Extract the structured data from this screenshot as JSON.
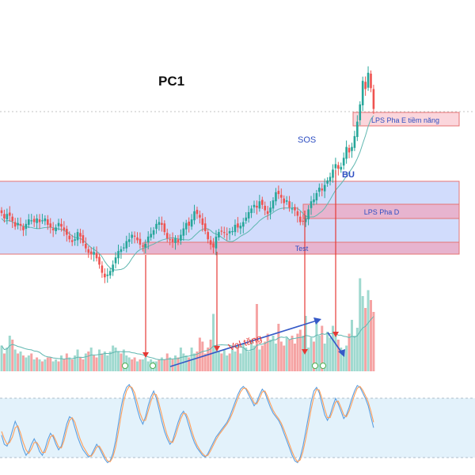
{
  "chart_data": [
    {
      "type": "candlestick",
      "title": "PC1",
      "colors": {
        "up": "#26a69a",
        "down": "#ef5350",
        "zone_fill": "#c9d6fb",
        "zone_border": "#e57373",
        "pink_zone": "#e7b4cf",
        "ma": "#5fb7b0",
        "arrow_red": "#e53935",
        "arrow_blue": "#3559c7",
        "label_blue": "#2f4fc2"
      },
      "zones": [
        {
          "name": "trading-range",
          "from_index": 0,
          "to_index": 135,
          "range": "upper"
        },
        {
          "name": "lps-pha-d-zone",
          "label": "LPS Pha D",
          "from_index": 110,
          "to_index": 135
        },
        {
          "name": "test-zone",
          "label": "Test",
          "from_index": 52,
          "to_index": 135
        },
        {
          "name": "lps-pha-e-zone",
          "label": "LPS Pha E tiềm năng",
          "from_index": 128,
          "to_index": 135
        }
      ],
      "annotations": [
        {
          "name": "sos-label",
          "text": "SOS"
        },
        {
          "name": "bu-label",
          "text": "BU"
        }
      ],
      "closes": [
        49.0,
        48.4,
        48.9,
        48.7,
        48.1,
        47.5,
        47.9,
        47.6,
        47.1,
        47.8,
        48.3,
        48.2,
        48.0,
        48.4,
        48.0,
        48.2,
        48.4,
        47.7,
        47.4,
        47.1,
        47.4,
        47.9,
        47.5,
        47.1,
        46.6,
        46.1,
        45.8,
        46.1,
        46.9,
        46.4,
        45.7,
        45.1,
        44.6,
        44.5,
        44.7,
        44.0,
        43.3,
        42.4,
        41.9,
        42.2,
        42.6,
        43.3,
        44.1,
        44.8,
        45.0,
        45.2,
        45.9,
        46.1,
        46.6,
        46.4,
        46.0,
        45.5,
        45.3,
        45.6,
        46.4,
        46.7,
        47.1,
        47.8,
        48.0,
        47.7,
        46.9,
        46.2,
        46.0,
        45.8,
        46.2,
        45.8,
        46.6,
        47.3,
        47.9,
        47.6,
        48.3,
        49.2,
        48.9,
        48.5,
        47.7,
        47.0,
        46.1,
        45.5,
        45.2,
        46.4,
        46.9,
        47.0,
        46.8,
        46.6,
        47.0,
        47.0,
        47.7,
        47.4,
        47.6,
        48.0,
        48.5,
        49.1,
        49.5,
        49.9,
        49.6,
        50.3,
        49.9,
        49.3,
        48.9,
        49.6,
        50.4,
        51.3,
        51.1,
        50.7,
        50.1,
        50.4,
        49.6,
        49.5,
        49.3,
        48.7,
        48.0,
        48.1,
        48.4,
        49.4,
        50.3,
        50.5,
        51.2,
        51.8,
        51.5,
        52.1,
        52.6,
        53.0,
        53.8,
        54.4,
        53.9,
        54.1,
        55.1,
        56.3,
        55.7,
        56.3,
        57.5,
        59.1,
        61.0,
        63.6,
        62.7,
        64.5,
        62.8,
        60.5
      ]
    },
    {
      "type": "bar",
      "annotations": [
        {
          "name": "vol-tang-label",
          "text": "Vol tăng"
        }
      ],
      "values": [
        1.3,
        0.9,
        1.2,
        1.8,
        1.6,
        1.1,
        0.9,
        1.0,
        0.8,
        0.7,
        0.8,
        0.9,
        0.6,
        0.7,
        0.6,
        0.5,
        0.6,
        0.7,
        0.7,
        0.5,
        0.6,
        0.5,
        0.8,
        0.6,
        0.9,
        0.7,
        0.6,
        0.8,
        1.1,
        0.7,
        0.6,
        0.9,
        1.0,
        1.2,
        0.8,
        0.7,
        1.1,
        0.9,
        1.0,
        0.8,
        1.0,
        1.3,
        1.2,
        1.0,
        0.9,
        1.1,
        0.8,
        0.7,
        0.6,
        0.7,
        0.5,
        0.6,
        0.6,
        0.7,
        0.5,
        0.6,
        0.5,
        0.5,
        0.6,
        0.7,
        0.6,
        0.9,
        0.7,
        0.6,
        0.8,
        0.7,
        1.2,
        0.9,
        0.8,
        0.7,
        1.2,
        0.9,
        1.0,
        1.7,
        1.5,
        0.9,
        1.2,
        1.6,
        2.9,
        1.3,
        1.0,
        0.9,
        1.1,
        0.8,
        0.9,
        1.1,
        1.0,
        1.2,
        0.9,
        1.4,
        1.2,
        1.0,
        1.6,
        1.3,
        3.4,
        1.1,
        1.3,
        1.5,
        1.9,
        1.6,
        1.8,
        1.4,
        2.4,
        1.5,
        1.3,
        1.7,
        1.6,
        1.8,
        1.4,
        1.9,
        2.1,
        1.8,
        2.8,
        1.2,
        1.7,
        1.5,
        2.5,
        1.8,
        2.3,
        1.4,
        2.0,
        1.7,
        2.3,
        1.9,
        1.6,
        1.2,
        1.0,
        1.3,
        1.9,
        2.6,
        1.8,
        2.2,
        4.7,
        3.8,
        3.2,
        4.1,
        3.6,
        3.0
      ],
      "up_flags": [
        1,
        0,
        1,
        1,
        0,
        1,
        0,
        1,
        0,
        1,
        1,
        0,
        1,
        0,
        1,
        0,
        1,
        0,
        0,
        1,
        1,
        0,
        1,
        0,
        0,
        1,
        0,
        1,
        1,
        0,
        0,
        1,
        0,
        1,
        0,
        0,
        1,
        0,
        1,
        1,
        1,
        1,
        1,
        1,
        0,
        1,
        1,
        1,
        0,
        0,
        1,
        0,
        1,
        1,
        1,
        1,
        1,
        1,
        0,
        1,
        0,
        0,
        1,
        0,
        1,
        0,
        1,
        1,
        1,
        0,
        1,
        1,
        0,
        0,
        0,
        0,
        0,
        0,
        1,
        1,
        1,
        0,
        1,
        1,
        0,
        1,
        1,
        0,
        1,
        1,
        1,
        1,
        1,
        1,
        0,
        1,
        0,
        0,
        0,
        1,
        1,
        1,
        0,
        0,
        0,
        1,
        0,
        0,
        0,
        0,
        0,
        1,
        1,
        1,
        1,
        0,
        1,
        1,
        0,
        1,
        1,
        1,
        1,
        1,
        0,
        1,
        1,
        1,
        0,
        1,
        1,
        1,
        1,
        1,
        0,
        1,
        0,
        0
      ]
    },
    {
      "type": "line",
      "series": [
        {
          "values": [
            40,
            30,
            28,
            35,
            45,
            55,
            48,
            36,
            25,
            18,
            22,
            30,
            36,
            30,
            22,
            18,
            25,
            35,
            42,
            38,
            30,
            24,
            28,
            40,
            52,
            60,
            58,
            48,
            38,
            30,
            24,
            20,
            16,
            18,
            24,
            30,
            26,
            20,
            14,
            10,
            12,
            20,
            34,
            52,
            70,
            84,
            92,
            95,
            90,
            80,
            68,
            58,
            52,
            60,
            72,
            82,
            88,
            80,
            68,
            55,
            44,
            36,
            30,
            34,
            44,
            54,
            62,
            66,
            60,
            50,
            40,
            32,
            26,
            22,
            18,
            16,
            20,
            26,
            32,
            38,
            42,
            46,
            50,
            54,
            60,
            68,
            76,
            84,
            90,
            93,
            90,
            84,
            78,
            72,
            76,
            84,
            90,
            86,
            78,
            70,
            64,
            60,
            56,
            50,
            42,
            34,
            26,
            18,
            12,
            10,
            16,
            28,
            44,
            60,
            76,
            88,
            92,
            86,
            74,
            62,
            56,
            62,
            72,
            80,
            74,
            66,
            58,
            62,
            70,
            80,
            88,
            94,
            92,
            86,
            80,
            72,
            60,
            48
          ]
        },
        {
          "values": [
            44,
            36,
            30,
            32,
            38,
            48,
            50,
            42,
            32,
            24,
            20,
            25,
            32,
            32,
            27,
            21,
            21,
            29,
            38,
            40,
            34,
            27,
            26,
            34,
            46,
            56,
            59,
            54,
            44,
            35,
            28,
            23,
            18,
            17,
            21,
            27,
            28,
            23,
            17,
            12,
            11,
            16,
            27,
            43,
            61,
            77,
            88,
            93,
            92,
            86,
            75,
            64,
            56,
            56,
            66,
            77,
            85,
            84,
            74,
            62,
            50,
            40,
            33,
            32,
            39,
            49,
            58,
            64,
            63,
            56,
            45,
            36,
            29,
            24,
            20,
            17,
            18,
            23,
            29,
            35,
            40,
            44,
            48,
            52,
            57,
            64,
            72,
            80,
            87,
            91,
            91,
            87,
            81,
            75,
            74,
            80,
            87,
            88,
            82,
            74,
            67,
            62,
            58,
            53,
            46,
            38,
            30,
            22,
            15,
            11,
            13,
            22,
            36,
            52,
            68,
            82,
            90,
            89,
            80,
            68,
            59,
            59,
            67,
            76,
            77,
            70,
            62,
            60,
            66,
            75,
            84,
            91,
            93,
            89,
            83,
            76,
            66,
            54
          ]
        }
      ],
      "ylim": [
        0,
        100
      ],
      "levels": [
        20,
        80
      ]
    }
  ]
}
